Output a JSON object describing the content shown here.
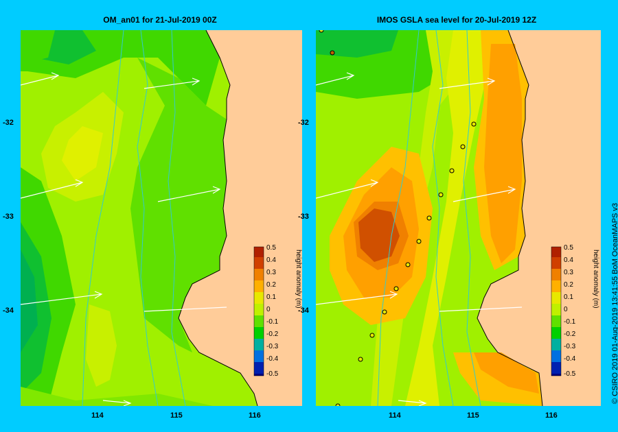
{
  "panels": [
    {
      "title": "OM_an01  for 21-Jul-2019 00Z"
    },
    {
      "title": "IMOS GSLA sea level  for 20-Jul-2019 12Z"
    }
  ],
  "x_ticks": [
    "114",
    "115",
    "116"
  ],
  "y_ticks": [
    "-32",
    "-33",
    "-34"
  ],
  "colorbar": {
    "label": "height anomaly (m)",
    "ticks": [
      "0.5",
      "0.4",
      "0.3",
      "0.2",
      "0.1",
      "0",
      "-0.1",
      "-0.2",
      "-0.3",
      "-0.4",
      "-0.5"
    ],
    "colors": [
      "#d04000",
      "#e06000",
      "#f09000",
      "#ffb000",
      "#e0e000",
      "#c0f000",
      "#60e000",
      "#00d000",
      "#00b080",
      "#0080e0",
      "#0020c0",
      "#000080"
    ]
  },
  "credit": "© CSIRO 2019   01-Aug-2019 13:41:55 BoM OceanMAPS v3",
  "colors": {
    "background": "#00ccff",
    "land": "#ffcc99",
    "coast": "#000000",
    "bathymetry": "#33cccc",
    "vector": "#ffffff"
  }
}
